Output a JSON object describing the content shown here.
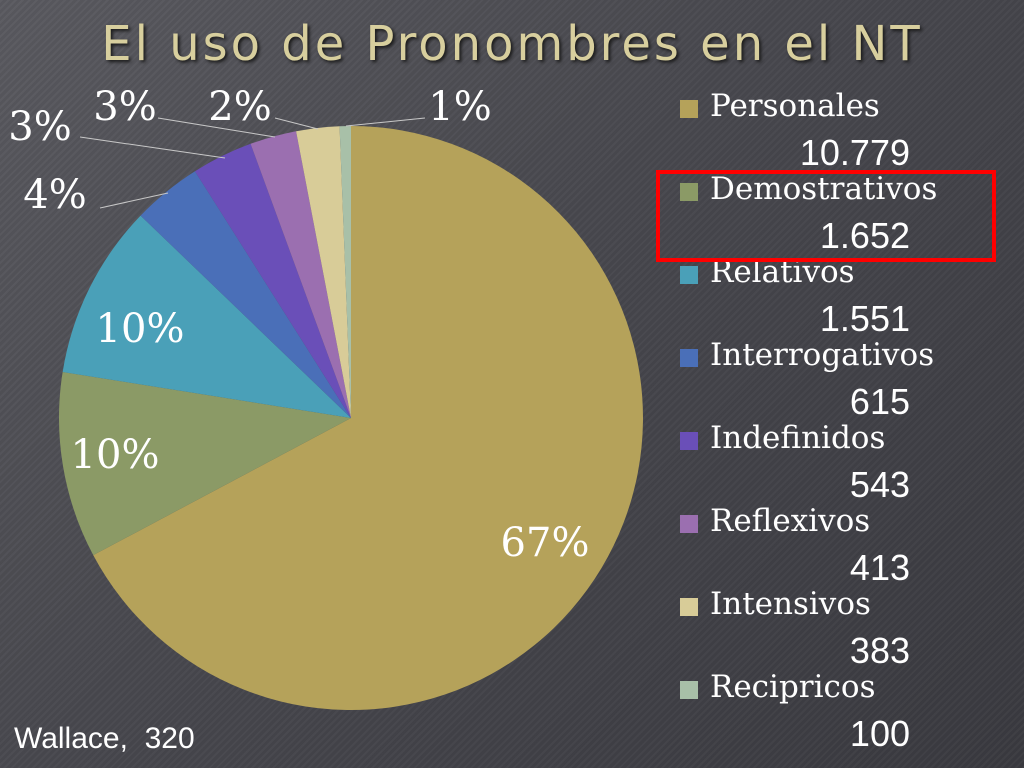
{
  "title": "El uso de Pronombres en el NT",
  "footer": "Wallace,  320",
  "chart_data": {
    "type": "pie",
    "legend_placement": "right",
    "highlighted_category": "Demostrativos",
    "slices": [
      {
        "label": "Personales",
        "count": "10.779",
        "value": 10779,
        "pct_label": "67%",
        "color": "#b5a25a"
      },
      {
        "label": "Demostrativos",
        "count": "1.652",
        "value": 1652,
        "pct_label": "10%",
        "color": "#8b9a66"
      },
      {
        "label": "Relativos",
        "count": "1.551",
        "value": 1551,
        "pct_label": "10%",
        "color": "#4aa0b8"
      },
      {
        "label": "Interrogativos",
        "count": "615",
        "value": 615,
        "pct_label": "4%",
        "color": "#4a6fb8"
      },
      {
        "label": "Indefinidos",
        "count": "543",
        "value": 543,
        "pct_label": "3%",
        "color": "#6a4fb8"
      },
      {
        "label": "Reflexivos",
        "count": "413",
        "value": 413,
        "pct_label": "3%",
        "color": "#9b6fb0"
      },
      {
        "label": "Intensivos",
        "count": "383",
        "value": 383,
        "pct_label": "2%",
        "color": "#d8cc98"
      },
      {
        "label": "Recipricos",
        "count": "100",
        "value": 100,
        "pct_label": "1%",
        "color": "#a8c0a8"
      }
    ]
  }
}
